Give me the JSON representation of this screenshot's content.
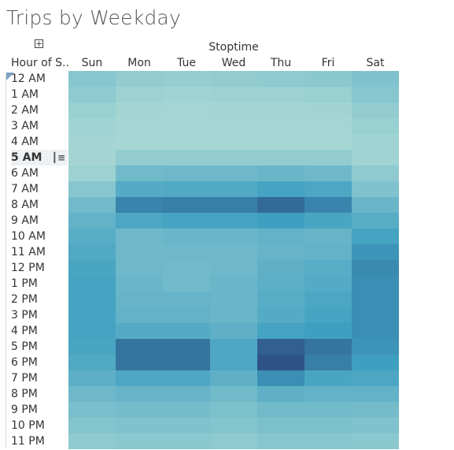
{
  "title": "Trips by Weekday",
  "expand_glyph": "+",
  "chart_data": {
    "type": "heatmap",
    "title": "Trips by Weekday",
    "column_group_label": "Stoptime",
    "row_header": "Hour of S..",
    "columns": [
      "Sun",
      "Mon",
      "Tue",
      "Wed",
      "Thu",
      "Fri",
      "Sat"
    ],
    "rows": [
      "12 AM",
      "1 AM",
      "2 AM",
      "3 AM",
      "4 AM",
      "5 AM",
      "6 AM",
      "7 AM",
      "8 AM",
      "9 AM",
      "10 AM",
      "11 AM",
      "12 PM",
      "1 PM",
      "2 PM",
      "3 PM",
      "4 PM",
      "5 PM",
      "6 PM",
      "7 PM",
      "8 PM",
      "9 PM",
      "10 PM",
      "11 PM"
    ],
    "highlighted_row": "5 AM",
    "values": [
      [
        0.3,
        0.24,
        0.22,
        0.24,
        0.26,
        0.28,
        0.34
      ],
      [
        0.26,
        0.18,
        0.16,
        0.18,
        0.18,
        0.2,
        0.3
      ],
      [
        0.2,
        0.14,
        0.13,
        0.14,
        0.14,
        0.15,
        0.24
      ],
      [
        0.16,
        0.12,
        0.12,
        0.12,
        0.12,
        0.13,
        0.2
      ],
      [
        0.14,
        0.12,
        0.12,
        0.12,
        0.12,
        0.13,
        0.16
      ],
      [
        0.14,
        0.24,
        0.24,
        0.24,
        0.24,
        0.24,
        0.16
      ],
      [
        0.18,
        0.42,
        0.44,
        0.44,
        0.46,
        0.44,
        0.26
      ],
      [
        0.3,
        0.58,
        0.6,
        0.6,
        0.66,
        0.62,
        0.34
      ],
      [
        0.42,
        0.8,
        0.82,
        0.82,
        0.9,
        0.8,
        0.46
      ],
      [
        0.5,
        0.62,
        0.66,
        0.66,
        0.7,
        0.64,
        0.56
      ],
      [
        0.56,
        0.44,
        0.46,
        0.46,
        0.5,
        0.48,
        0.66
      ],
      [
        0.6,
        0.44,
        0.44,
        0.44,
        0.48,
        0.5,
        0.74
      ],
      [
        0.64,
        0.44,
        0.42,
        0.44,
        0.52,
        0.56,
        0.78
      ],
      [
        0.66,
        0.46,
        0.42,
        0.46,
        0.54,
        0.58,
        0.76
      ],
      [
        0.66,
        0.48,
        0.48,
        0.46,
        0.56,
        0.62,
        0.76
      ],
      [
        0.66,
        0.5,
        0.5,
        0.46,
        0.58,
        0.66,
        0.76
      ],
      [
        0.66,
        0.58,
        0.58,
        0.52,
        0.66,
        0.7,
        0.76
      ],
      [
        0.64,
        0.86,
        0.86,
        0.62,
        0.94,
        0.86,
        0.74
      ],
      [
        0.6,
        0.86,
        0.86,
        0.62,
        0.98,
        0.82,
        0.7
      ],
      [
        0.54,
        0.62,
        0.62,
        0.52,
        0.76,
        0.64,
        0.62
      ],
      [
        0.44,
        0.48,
        0.48,
        0.42,
        0.52,
        0.5,
        0.5
      ],
      [
        0.38,
        0.4,
        0.4,
        0.36,
        0.42,
        0.42,
        0.4
      ],
      [
        0.32,
        0.34,
        0.34,
        0.32,
        0.36,
        0.36,
        0.34
      ],
      [
        0.26,
        0.28,
        0.28,
        0.26,
        0.3,
        0.3,
        0.28
      ]
    ],
    "color_scale": {
      "low": "#bde3d8",
      "mid": "#3f9fc1",
      "high": "#2d4f82"
    }
  }
}
